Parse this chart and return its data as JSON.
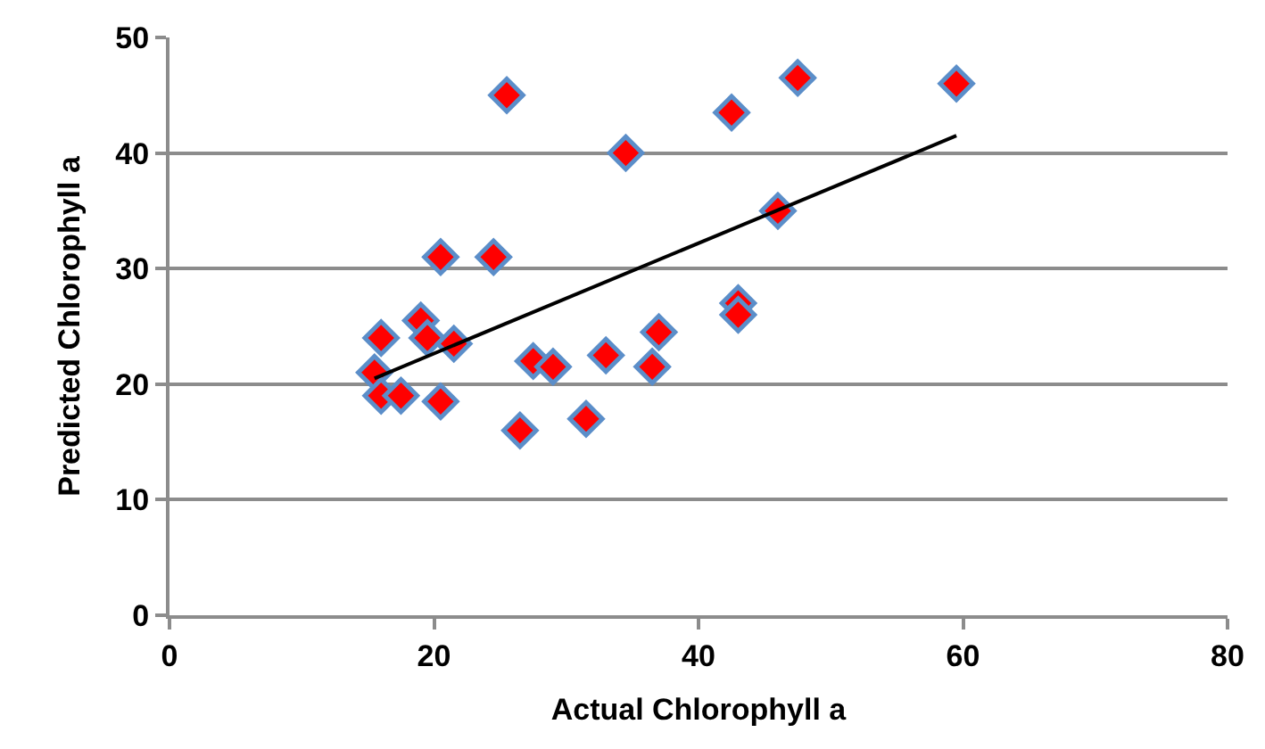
{
  "chart_data": {
    "type": "scatter",
    "xlabel": "Actual Chlorophyll a",
    "ylabel": "Predicted Chlorophyll a",
    "xlim": [
      0,
      80
    ],
    "xticks": [
      0,
      20,
      40,
      60,
      80
    ],
    "ylim": [
      0,
      50
    ],
    "yticks": [
      0,
      10,
      20,
      30,
      40,
      50
    ],
    "grid": "y",
    "legend": false,
    "series": [
      {
        "marker": "diamond",
        "color": "#ff0000",
        "x": [
          15.5,
          16,
          16,
          17.5,
          19,
          19.5,
          20.5,
          20.5,
          21.5,
          24.5,
          25.5,
          26.5,
          27.5,
          29,
          31.5,
          33,
          34.5,
          36.5,
          37,
          42.5,
          43,
          43,
          46,
          47.5,
          59.5
        ],
        "values": [
          21,
          19,
          24,
          19,
          25.5,
          24,
          18.5,
          31,
          23.5,
          31,
          45,
          16,
          22,
          21.5,
          17,
          22.5,
          40,
          21.5,
          24.5,
          43.5,
          27,
          26,
          35,
          46.5,
          46
        ]
      },
      {
        "type": "line",
        "color": "#000000",
        "x": [
          15.5,
          59.5
        ],
        "values": [
          20.5,
          41.5
        ]
      }
    ]
  }
}
